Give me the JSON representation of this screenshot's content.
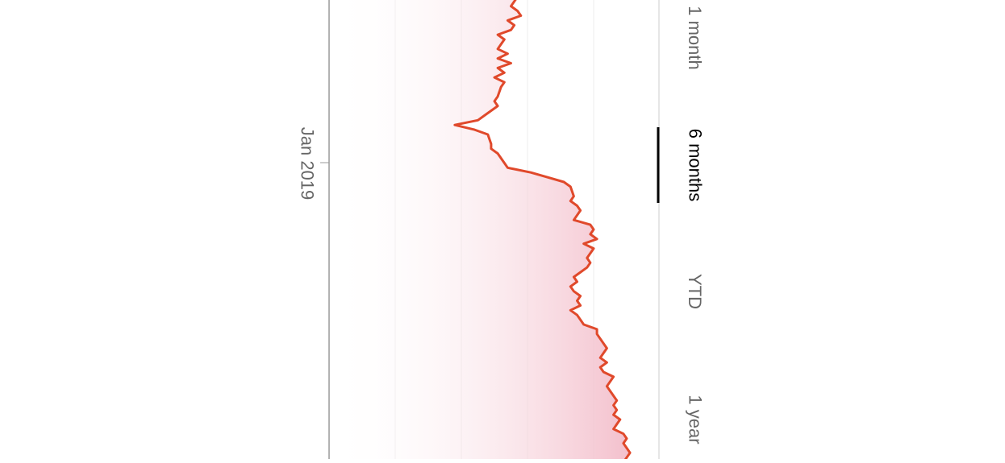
{
  "chart_data": {
    "type": "area",
    "orientation": "rotated-90-clockwise",
    "x_tick_labels": [
      "Jan 2019"
    ],
    "grid": true,
    "line_color": "#e0492b",
    "fill_color": "#f2b8c6",
    "series": [
      {
        "points": [
          [
            0.0,
            0.55
          ],
          [
            0.01,
            0.57
          ],
          [
            0.02,
            0.56
          ],
          [
            0.03,
            0.55
          ],
          [
            0.04,
            0.57
          ],
          [
            0.05,
            0.58
          ],
          [
            0.06,
            0.54
          ],
          [
            0.07,
            0.56
          ],
          [
            0.08,
            0.55
          ],
          [
            0.09,
            0.51
          ],
          [
            0.1,
            0.53
          ],
          [
            0.11,
            0.52
          ],
          [
            0.12,
            0.51
          ],
          [
            0.13,
            0.54
          ],
          [
            0.14,
            0.51
          ],
          [
            0.15,
            0.55
          ],
          [
            0.16,
            0.51
          ],
          [
            0.17,
            0.53
          ],
          [
            0.18,
            0.5
          ],
          [
            0.19,
            0.53
          ],
          [
            0.2,
            0.52
          ],
          [
            0.22,
            0.51
          ],
          [
            0.23,
            0.5
          ],
          [
            0.24,
            0.51
          ],
          [
            0.25,
            0.49
          ],
          [
            0.26,
            0.47
          ],
          [
            0.27,
            0.45
          ],
          [
            0.28,
            0.38
          ],
          [
            0.29,
            0.44
          ],
          [
            0.3,
            0.48
          ],
          [
            0.32,
            0.49
          ],
          [
            0.33,
            0.49
          ],
          [
            0.34,
            0.51
          ],
          [
            0.35,
            0.52
          ],
          [
            0.36,
            0.53
          ],
          [
            0.37,
            0.54
          ],
          [
            0.38,
            0.61
          ],
          [
            0.39,
            0.66
          ],
          [
            0.4,
            0.71
          ],
          [
            0.41,
            0.73
          ],
          [
            0.43,
            0.74
          ],
          [
            0.44,
            0.73
          ],
          [
            0.45,
            0.75
          ],
          [
            0.46,
            0.76
          ],
          [
            0.48,
            0.74
          ],
          [
            0.49,
            0.79
          ],
          [
            0.5,
            0.8
          ],
          [
            0.51,
            0.79
          ],
          [
            0.52,
            0.81
          ],
          [
            0.53,
            0.77
          ],
          [
            0.54,
            0.8
          ],
          [
            0.56,
            0.78
          ],
          [
            0.57,
            0.79
          ],
          [
            0.58,
            0.78
          ],
          [
            0.59,
            0.76
          ],
          [
            0.6,
            0.74
          ],
          [
            0.61,
            0.75
          ],
          [
            0.62,
            0.73
          ],
          [
            0.63,
            0.74
          ],
          [
            0.64,
            0.76
          ],
          [
            0.65,
            0.75
          ],
          [
            0.66,
            0.76
          ],
          [
            0.67,
            0.73
          ],
          [
            0.68,
            0.75
          ],
          [
            0.7,
            0.77
          ],
          [
            0.71,
            0.81
          ],
          [
            0.72,
            0.81
          ],
          [
            0.73,
            0.82
          ],
          [
            0.74,
            0.83
          ],
          [
            0.75,
            0.84
          ],
          [
            0.76,
            0.83
          ],
          [
            0.77,
            0.82
          ],
          [
            0.78,
            0.84
          ],
          [
            0.79,
            0.82
          ],
          [
            0.8,
            0.83
          ],
          [
            0.81,
            0.86
          ],
          [
            0.82,
            0.85
          ],
          [
            0.83,
            0.84
          ],
          [
            0.84,
            0.85
          ],
          [
            0.85,
            0.86
          ],
          [
            0.86,
            0.87
          ],
          [
            0.87,
            0.86
          ],
          [
            0.88,
            0.87
          ],
          [
            0.89,
            0.86
          ],
          [
            0.9,
            0.88
          ],
          [
            0.91,
            0.87
          ],
          [
            0.92,
            0.86
          ],
          [
            0.93,
            0.89
          ],
          [
            0.94,
            0.9
          ],
          [
            0.95,
            0.89
          ],
          [
            0.96,
            0.9
          ],
          [
            0.97,
            0.91
          ],
          [
            0.98,
            0.9
          ],
          [
            1.0,
            0.88
          ]
        ]
      }
    ]
  },
  "range_selector": {
    "options": [
      "1 month",
      "6 months",
      "YTD",
      "1 year"
    ],
    "selected": "6 months"
  }
}
